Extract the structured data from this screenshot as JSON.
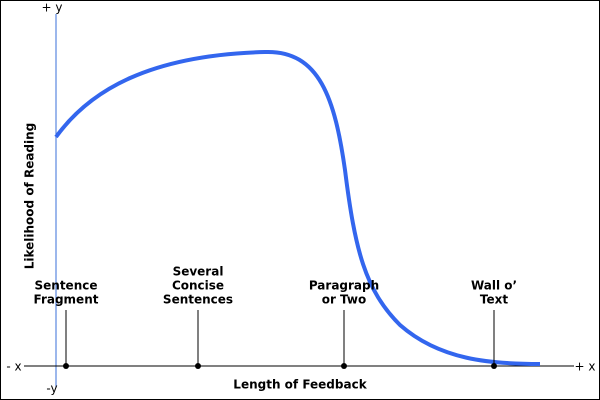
{
  "axes": {
    "y_plus": "+ y",
    "y_minus": "-y",
    "x_minus": "- x",
    "x_plus": "+ x",
    "y_label": "Likelihood of Reading",
    "x_label": "Length of Feedback"
  },
  "markers": [
    {
      "lines": [
        "Sentence",
        "Fragment"
      ]
    },
    {
      "lines": [
        "Several",
        "Concise",
        "Sentences"
      ]
    },
    {
      "lines": [
        "Paragraph",
        "or Two"
      ]
    },
    {
      "lines": [
        "Wall o’",
        "Text"
      ]
    }
  ]
}
